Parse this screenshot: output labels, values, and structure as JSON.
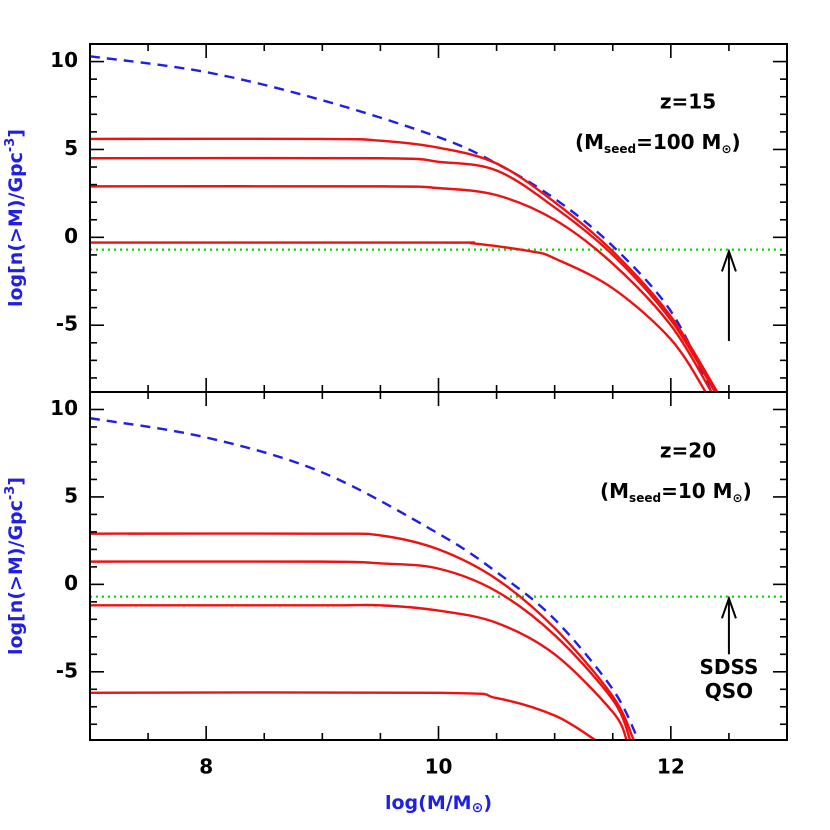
{
  "chart_data": [
    {
      "type": "line",
      "ylabel_parts": [
        "log[n(>M)/Gpc",
        "-3",
        "]"
      ],
      "xlim": [
        7,
        13
      ],
      "ylim": [
        -8.8,
        11
      ],
      "xticks": [
        8,
        10,
        12
      ],
      "xminorticks": [
        7.5,
        8.5,
        9,
        9.5,
        10.5,
        11,
        11.5,
        12.5
      ],
      "yticks": [
        -5,
        0,
        5,
        10
      ],
      "yminorticks": [
        -8,
        -7,
        -6,
        -4,
        -3,
        -2,
        -1,
        1,
        2,
        3,
        4,
        6,
        7,
        8,
        9
      ],
      "show_xtick_labels": false,
      "note": "z=15",
      "note_parts": [
        "(M",
        "seed",
        "=100 M",
        "⊙",
        ")"
      ],
      "hline": {
        "value": -0.7,
        "color": "#00e000"
      },
      "arrow": {
        "x": 12.5,
        "y": [
          -5.9,
          -0.8
        ]
      },
      "series": [
        {
          "color": "#1f1fe6",
          "dash": true,
          "x": [
            7,
            8,
            9,
            10,
            10.5,
            11,
            11.5,
            12,
            12.35
          ],
          "values": [
            10.3,
            9.4,
            7.8,
            5.7,
            4.2,
            2.2,
            -0.5,
            -4.2,
            -8.8
          ]
        },
        {
          "color": "#ee1111",
          "dash": false,
          "x": [
            7,
            9,
            9.5,
            10,
            10.5,
            11,
            11.5,
            12,
            12.4
          ],
          "values": [
            5.6,
            5.6,
            5.5,
            5.1,
            4.2,
            2.0,
            -0.8,
            -4.5,
            -8.8
          ]
        },
        {
          "color": "#ee1111",
          "dash": false,
          "x": [
            7,
            9.5,
            10,
            10.5,
            11,
            11.5,
            12,
            12.38
          ],
          "values": [
            4.5,
            4.5,
            4.3,
            3.8,
            1.7,
            -1.0,
            -4.7,
            -8.8
          ]
        },
        {
          "color": "#ee1111",
          "dash": false,
          "x": [
            7,
            9.5,
            10,
            10.5,
            11,
            11.5,
            12,
            12.35
          ],
          "values": [
            2.9,
            2.9,
            2.8,
            2.4,
            1.0,
            -1.5,
            -5.0,
            -8.8
          ]
        },
        {
          "color": "#ee1111",
          "dash": false,
          "x": [
            7,
            10,
            10.3,
            10.8,
            11,
            11.5,
            12,
            12.3
          ],
          "values": [
            -0.3,
            -0.3,
            -0.35,
            -0.8,
            -1.2,
            -2.9,
            -5.8,
            -8.8
          ]
        }
      ]
    },
    {
      "type": "line",
      "ylabel_parts": [
        "log[n(>M)/Gpc",
        "-3",
        "]"
      ],
      "xlabel_parts": [
        "log(M/M",
        "⊙",
        ")"
      ],
      "xlim": [
        7,
        13
      ],
      "ylim": [
        -8.9,
        11
      ],
      "xticks": [
        8,
        10,
        12
      ],
      "xminorticks": [
        7.5,
        8.5,
        9,
        9.5,
        10.5,
        11,
        11.5,
        12.5
      ],
      "yticks": [
        -5,
        0,
        5,
        10
      ],
      "yminorticks": [
        -8,
        -7,
        -6,
        -4,
        -3,
        -2,
        -1,
        1,
        2,
        3,
        4,
        6,
        7,
        8,
        9
      ],
      "show_xtick_labels": true,
      "note": "z=20",
      "note_parts": [
        "(M",
        "seed",
        "=10 M",
        "⊙",
        ")"
      ],
      "hline": {
        "value": -0.7,
        "color": "#00e000"
      },
      "arrow": {
        "x": 12.5,
        "y": [
          -4.0,
          -0.8
        ]
      },
      "arrow_label": [
        "SDSS",
        "QSO"
      ],
      "series": [
        {
          "color": "#1f1fe6",
          "dash": true,
          "x": [
            7,
            8,
            9,
            10,
            10.5,
            11,
            11.5,
            11.72
          ],
          "values": [
            9.5,
            8.4,
            6.4,
            2.9,
            0.7,
            -2.0,
            -6.0,
            -8.9
          ]
        },
        {
          "color": "#ee1111",
          "dash": false,
          "x": [
            7,
            9,
            9.5,
            10,
            10.5,
            11,
            11.5,
            11.68
          ],
          "values": [
            2.9,
            2.9,
            2.8,
            2.0,
            0.3,
            -2.5,
            -6.4,
            -8.9
          ]
        },
        {
          "color": "#ee1111",
          "dash": false,
          "x": [
            7,
            9,
            9.5,
            10,
            10.5,
            11,
            11.5,
            11.65
          ],
          "values": [
            1.3,
            1.3,
            1.2,
            0.9,
            -0.4,
            -2.9,
            -6.6,
            -8.9
          ]
        },
        {
          "color": "#ee1111",
          "dash": false,
          "x": [
            7,
            9,
            9.5,
            10,
            10.5,
            11,
            11.5,
            11.62
          ],
          "values": [
            -1.2,
            -1.2,
            -1.2,
            -1.5,
            -2.2,
            -4.0,
            -7.3,
            -8.9
          ]
        },
        {
          "color": "#ee1111",
          "dash": false,
          "x": [
            7,
            10,
            10.5,
            11,
            11.35
          ],
          "values": [
            -6.2,
            -6.2,
            -6.5,
            -7.5,
            -8.9
          ]
        }
      ]
    }
  ]
}
